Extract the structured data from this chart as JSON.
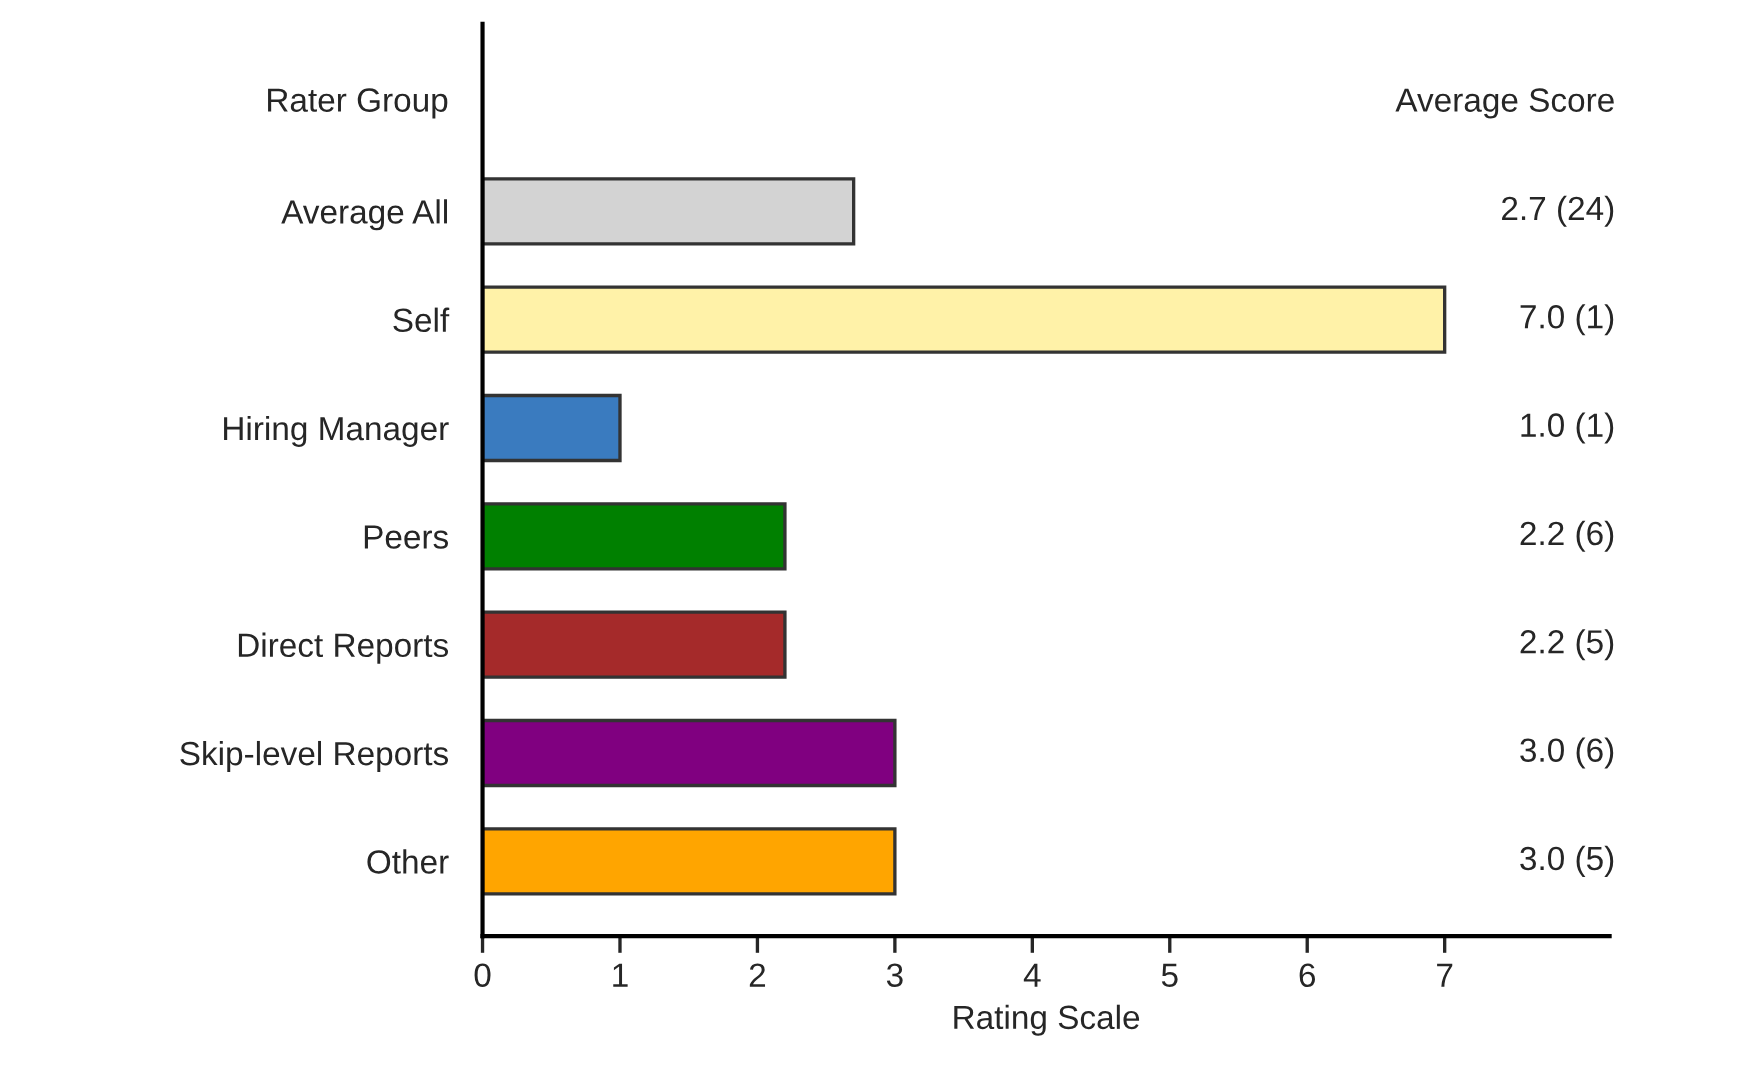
{
  "chart_data": {
    "type": "bar",
    "orientation": "horizontal",
    "xlabel": "Rating Scale",
    "ylabel": "Rater Group",
    "categories": [
      "Average All",
      "Self",
      "Hiring Manager",
      "Peers",
      "Direct Reports",
      "Skip-level Reports",
      "Other"
    ],
    "values": [
      2.7,
      7.0,
      1.0,
      2.2,
      2.2,
      3.0,
      3.0
    ],
    "colors": [
      "#d3d3d3",
      "#fff2a8",
      "#3a7bbf",
      "#008000",
      "#a52a2a",
      "#800080",
      "#ffa500"
    ],
    "value_labels": [
      "2.7 (24)",
      "7.0 (1)",
      "1.0 (1)",
      "2.2 (6)",
      "2.2 (5)",
      "3.0 (6)",
      "3.0 (5)"
    ],
    "annotations": [
      "Average Score"
    ],
    "xlim": [
      0,
      8.2
    ],
    "xticks": [
      0,
      1,
      2,
      3,
      4,
      5,
      6,
      7
    ],
    "grid": false,
    "legend": false
  }
}
